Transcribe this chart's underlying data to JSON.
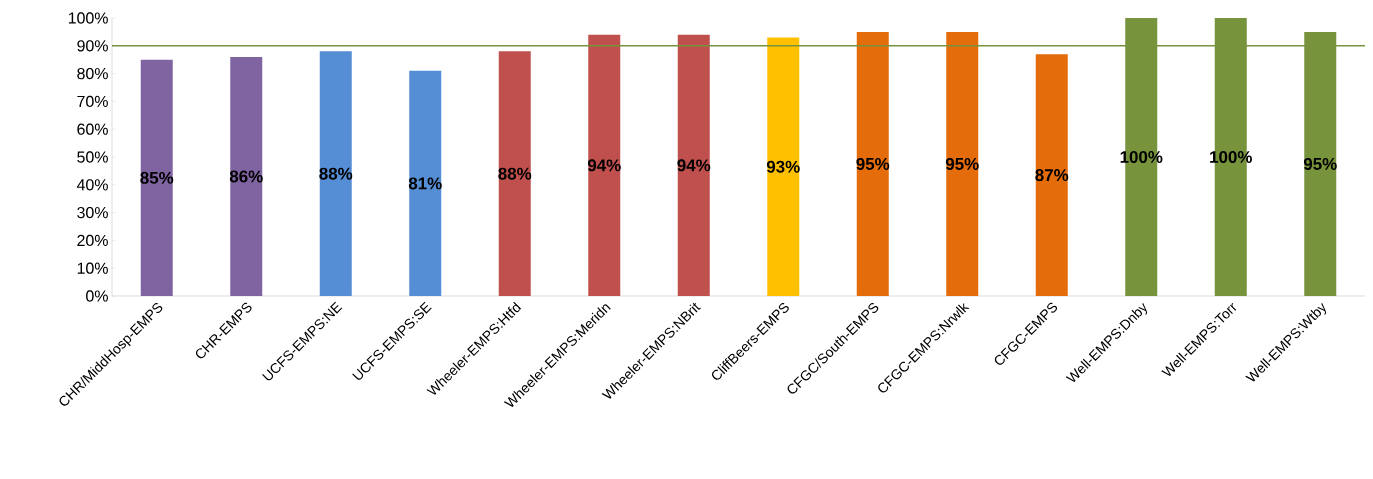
{
  "chart_data": {
    "type": "bar",
    "categories": [
      "CHR/MiddHosp-EMPS",
      "CHR-EMPS",
      "UCFS-EMPS:NE",
      "UCFS-EMPS:SE",
      "Wheeler-EMPS:Htfd",
      "Wheeler-EMPS:Meridn",
      "Wheeler-EMPS:NBrit",
      "CliffBeers-EMPS",
      "CFGC/South-EMPS",
      "CFGC-EMPS:Nrwlk",
      "CFGC-EMPS",
      "Well-EMPS:Dnby",
      "Well-EMPS:Torr",
      "Well-EMPS:Wtby"
    ],
    "values": [
      85,
      86,
      88,
      81,
      88,
      94,
      94,
      93,
      95,
      95,
      87,
      100,
      100,
      95
    ],
    "value_labels": [
      "85%",
      "86%",
      "88%",
      "81%",
      "88%",
      "94%",
      "94%",
      "93%",
      "95%",
      "95%",
      "87%",
      "100%",
      "100%",
      "95%"
    ],
    "colors": [
      "#8064a2",
      "#8064a2",
      "#558ed5",
      "#558ed5",
      "#c0504d",
      "#c0504d",
      "#c0504d",
      "#ffc000",
      "#e46c0a",
      "#e46c0a",
      "#e46c0a",
      "#77933c",
      "#77933c",
      "#77933c"
    ],
    "ylim": [
      0,
      100
    ],
    "yticks": [
      {
        "value": 0,
        "label": "0%"
      },
      {
        "value": 10,
        "label": "10%"
      },
      {
        "value": 20,
        "label": "20%"
      },
      {
        "value": 30,
        "label": "30%"
      },
      {
        "value": 40,
        "label": "40%"
      },
      {
        "value": 50,
        "label": "50%"
      },
      {
        "value": 60,
        "label": "60%"
      },
      {
        "value": 70,
        "label": "70%"
      },
      {
        "value": 80,
        "label": "80%"
      },
      {
        "value": 90,
        "label": "90%"
      },
      {
        "value": 100,
        "label": "100%"
      }
    ],
    "ref_lines": [
      {
        "axis": "y",
        "value": 90,
        "color": "#77933c"
      }
    ]
  }
}
